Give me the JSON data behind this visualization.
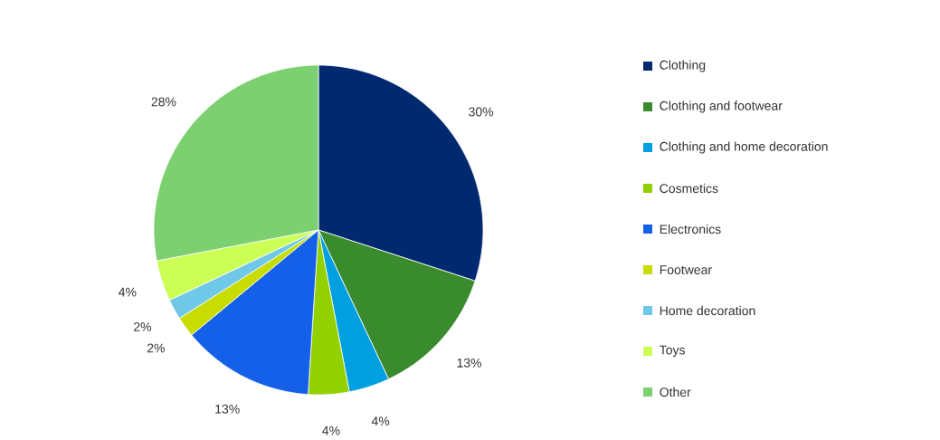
{
  "chart_data": {
    "type": "pie",
    "categories": [
      "Clothing",
      "Clothing and footwear",
      "Clothing and home decoration",
      "Cosmetics",
      "Electronics",
      "Footwear",
      "Home decoration",
      "Toys",
      "Other"
    ],
    "values": [
      30,
      13,
      4,
      4,
      13,
      2,
      2,
      4,
      28
    ],
    "value_labels": [
      "30%",
      "13%",
      "4%",
      "4%",
      "13%",
      "2%",
      "2%",
      "4%",
      "28%"
    ],
    "colors": [
      "#002970",
      "#3a8a2e",
      "#00a0e0",
      "#92d000",
      "#1560e8",
      "#c8dc00",
      "#70c8e8",
      "#ccff55",
      "#7dd070"
    ],
    "legend": "right"
  }
}
